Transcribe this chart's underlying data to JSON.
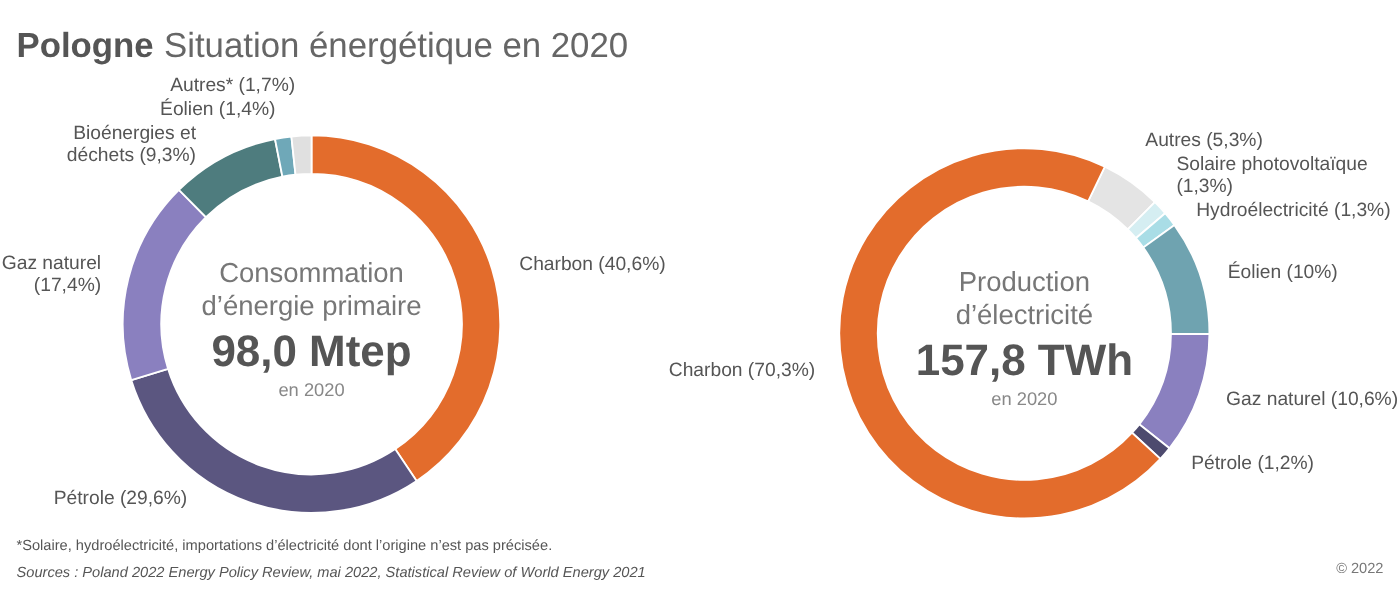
{
  "chart_data": [
    {
      "type": "donut",
      "title": "Pologne Situation énergétique en 2020",
      "categories": [
        "Charbon",
        "Pétrole",
        "Gaz naturel",
        "Bioénergies et déchets",
        "Éolien",
        "Autres*"
      ],
      "values": [
        40.6,
        29.6,
        17.4,
        9.3,
        1.4,
        1.7
      ],
      "value_labels": [
        "(40,6%)",
        "(29,6%)",
        "(17,4%)",
        "(9,3%)",
        "(1,4%)",
        "(1,7%)"
      ],
      "colors": [
        "#e36c2c",
        "#5b5680",
        "#8a80bf",
        "#4e7c7e",
        "#6fa8b8",
        "#e0e0e0"
      ],
      "annotations": [
        "Consommation",
        "d’énergie primaire",
        "98,0 Mtep",
        "en 2020",
        "*Solaire, hydroélectricité, importations d’électricité dont l’origine n’est pas précisée.",
        "Sources : Poland 2022 Energy Policy Review, mai 2022, Statistical Review of World Energy 2021"
      ]
    },
    {
      "type": "donut",
      "categories": [
        "Autres",
        "Solaire photovoltaïque",
        "Hydroélectricité",
        "Éolien",
        "Gaz naturel",
        "Pétrole",
        "Charbon"
      ],
      "values": [
        5.3,
        1.3,
        1.3,
        10,
        10.6,
        1.2,
        70.3
      ],
      "value_labels": [
        "(5,3%)",
        "(1,3%)",
        "(1,3%)",
        "(10%)",
        "(10,6%)",
        "(1,2%)",
        "(70,3%)"
      ],
      "colors": [
        "#e4e4e4",
        "#d5eef2",
        "#a9dde6",
        "#6fa3b0",
        "#8a80bf",
        "#4d4a6e",
        "#e36c2c"
      ],
      "annotations": [
        "Production",
        "d’électricité",
        "157,8 TWh",
        "en 2020",
        "© 2022"
      ]
    }
  ]
}
